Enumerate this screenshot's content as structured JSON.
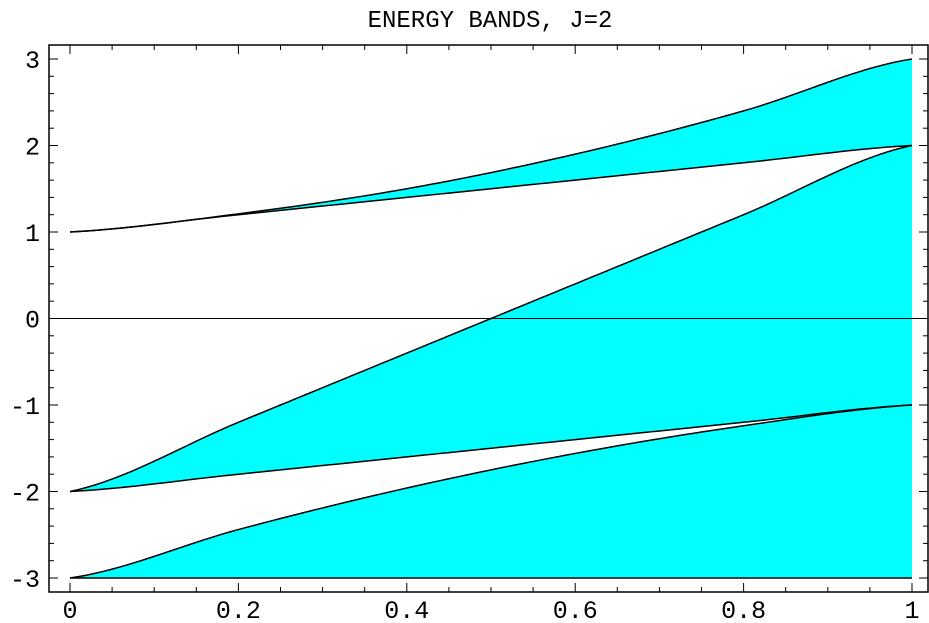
{
  "chart_data": {
    "type": "area",
    "title": "ENERGY BANDS, J=2",
    "xlabel": "",
    "ylabel": "",
    "xlim": [
      0,
      1
    ],
    "ylim": [
      -3,
      3
    ],
    "x_ticks": [
      "0",
      "0.2",
      "0.4",
      "0.6",
      "0.8",
      "1"
    ],
    "y_ticks": [
      "3",
      "2",
      "1",
      "0",
      "-1",
      "-2",
      "-3"
    ],
    "fill_color": "#00ffff",
    "line_color": "#000000",
    "grid": false,
    "zero_line": true,
    "bands": [
      {
        "lower": {
          "x": [
            0,
            0.2,
            0.4,
            0.6,
            0.8,
            1
          ],
          "y": [
            1.0,
            1.2,
            1.4,
            1.6,
            1.8,
            2.0
          ]
        },
        "upper": {
          "x": [
            0,
            0.2,
            0.4,
            0.6,
            0.8,
            1
          ],
          "y": [
            1.0,
            1.21,
            1.5,
            1.9,
            2.4,
            3.0
          ]
        }
      },
      {
        "lower": {
          "x": [
            0,
            0.2,
            0.4,
            0.6,
            0.8,
            1
          ],
          "y": [
            -2.0,
            -1.8,
            -1.6,
            -1.4,
            -1.2,
            -1.0
          ]
        },
        "upper": {
          "x": [
            0,
            0.2,
            0.4,
            0.6,
            0.8,
            1
          ],
          "y": [
            -2.0,
            -1.2,
            -0.4,
            0.4,
            1.2,
            2.0
          ]
        }
      },
      {
        "lower": {
          "x": [
            0,
            0.2,
            0.4,
            0.6,
            0.8,
            1
          ],
          "y": [
            -3.0,
            -3.0,
            -3.0,
            -3.0,
            -3.0,
            -3.0
          ]
        },
        "upper": {
          "x": [
            0,
            0.2,
            0.4,
            0.6,
            0.8,
            1
          ],
          "y": [
            -3.0,
            -2.44,
            -1.96,
            -1.56,
            -1.24,
            -1.0
          ]
        }
      }
    ]
  }
}
